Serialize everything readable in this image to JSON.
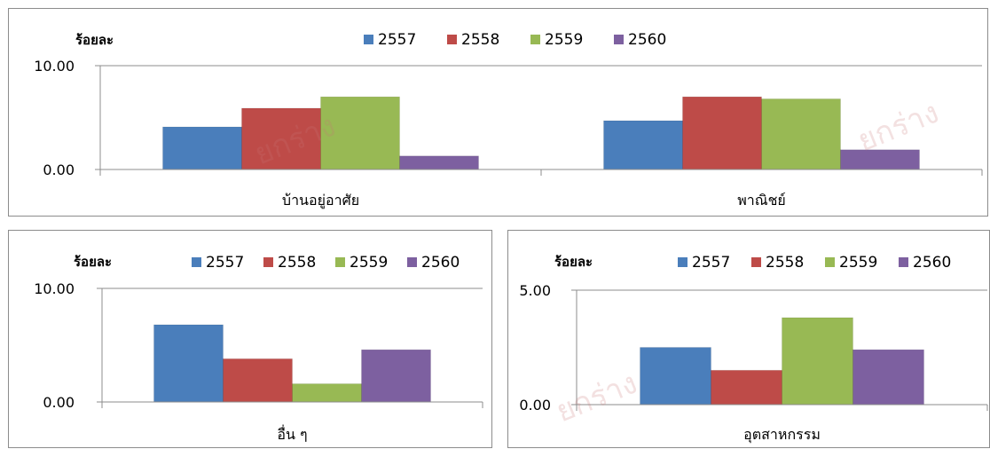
{
  "watermark": "ยกร่าง",
  "chart_data": [
    {
      "type": "bar",
      "ylabel": "ร้อยละ",
      "ylim": [
        0,
        10
      ],
      "yticks": [
        "0.00",
        "10.00"
      ],
      "grid": true,
      "legend": "top-center",
      "categories": [
        "บ้านอยู่อาศัย",
        "พาณิชย์"
      ],
      "series": [
        {
          "name": "2557",
          "color": "#4a7ebb",
          "values": [
            4.1,
            4.7
          ]
        },
        {
          "name": "2558",
          "color": "#be4b48",
          "values": [
            5.9,
            7.0
          ]
        },
        {
          "name": "2559",
          "color": "#98b954",
          "values": [
            7.0,
            6.8
          ]
        },
        {
          "name": "2560",
          "color": "#7d60a0",
          "values": [
            1.3,
            1.9
          ]
        }
      ]
    },
    {
      "type": "bar",
      "ylabel": "ร้อยละ",
      "ylim": [
        0,
        10
      ],
      "yticks": [
        "0.00",
        "10.00"
      ],
      "grid": true,
      "legend": "top-center",
      "categories": [
        "อื่น ๆ"
      ],
      "series": [
        {
          "name": "2557",
          "color": "#4a7ebb",
          "values": [
            6.8
          ]
        },
        {
          "name": "2558",
          "color": "#be4b48",
          "values": [
            3.8
          ]
        },
        {
          "name": "2559",
          "color": "#98b954",
          "values": [
            1.6
          ]
        },
        {
          "name": "2560",
          "color": "#7d60a0",
          "values": [
            4.6
          ]
        }
      ]
    },
    {
      "type": "bar",
      "ylabel": "ร้อยละ",
      "ylim": [
        0,
        5
      ],
      "yticks": [
        "0.00",
        "5.00"
      ],
      "grid": true,
      "legend": "top-center",
      "categories": [
        "อุตสาหกรรม"
      ],
      "series": [
        {
          "name": "2557",
          "color": "#4a7ebb",
          "values": [
            2.5
          ]
        },
        {
          "name": "2558",
          "color": "#be4b48",
          "values": [
            1.5
          ]
        },
        {
          "name": "2559",
          "color": "#98b954",
          "values": [
            3.8
          ]
        },
        {
          "name": "2560",
          "color": "#7d60a0",
          "values": [
            2.4
          ]
        }
      ]
    }
  ]
}
